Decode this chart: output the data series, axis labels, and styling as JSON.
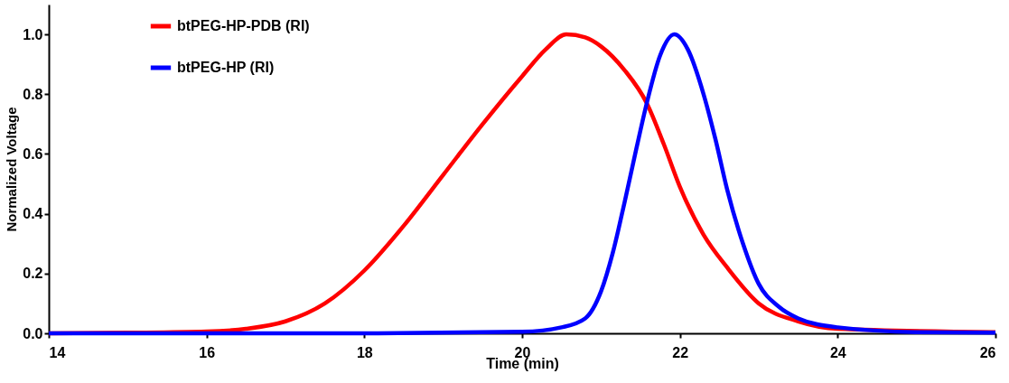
{
  "chart_data": {
    "type": "line",
    "xlabel": "Time (min)",
    "ylabel": "Normalized Voltage",
    "xlim": [
      14,
      26
    ],
    "xticks": [
      14,
      16,
      18,
      20,
      22,
      24,
      26
    ],
    "ylim": [
      0,
      1.1
    ],
    "yticks": [
      {
        "value": 0,
        "label": "0.0"
      },
      {
        "value": 0.2,
        "label": "0.2"
      },
      {
        "value": 0.4,
        "label": "0.4"
      },
      {
        "value": 0.6,
        "label": "0.6"
      },
      {
        "value": 0.8,
        "label": "0.8"
      },
      {
        "value": 1,
        "label": "1.0"
      }
    ],
    "grid": false,
    "legend": "top left",
    "marker": "none",
    "line_style": "solid",
    "series": [
      {
        "name": "btPEG-HP-PDB (RI)",
        "color": "#ff0000",
        "x": [
          14,
          15,
          16,
          16.5,
          17,
          17.5,
          18,
          18.5,
          19,
          19.5,
          20,
          20.3,
          20.56,
          20.8,
          21,
          21.3,
          21.58,
          21.8,
          22,
          22.3,
          22.6,
          23,
          23.5,
          24,
          26
        ],
        "values": [
          0,
          0.002,
          0.006,
          0.015,
          0.04,
          0.1,
          0.21,
          0.36,
          0.53,
          0.7,
          0.86,
          0.95,
          1.0,
          0.99,
          0.96,
          0.88,
          0.77,
          0.63,
          0.49,
          0.33,
          0.22,
          0.1,
          0.04,
          0.015,
          0.004
        ]
      },
      {
        "name": "btPEG-HP (RI)",
        "color": "#0000ff",
        "x": [
          14,
          18,
          20,
          20.5,
          20.8,
          21,
          21.15,
          21.3,
          21.45,
          21.58,
          21.75,
          21.93,
          22.1,
          22.3,
          22.45,
          22.6,
          22.8,
          23,
          23.25,
          23.5,
          24,
          25,
          26
        ],
        "values": [
          0,
          0,
          0.005,
          0.02,
          0.05,
          0.14,
          0.27,
          0.44,
          0.62,
          0.77,
          0.93,
          1.0,
          0.95,
          0.8,
          0.65,
          0.48,
          0.3,
          0.165,
          0.09,
          0.05,
          0.02,
          0.004,
          0.002
        ]
      }
    ]
  }
}
